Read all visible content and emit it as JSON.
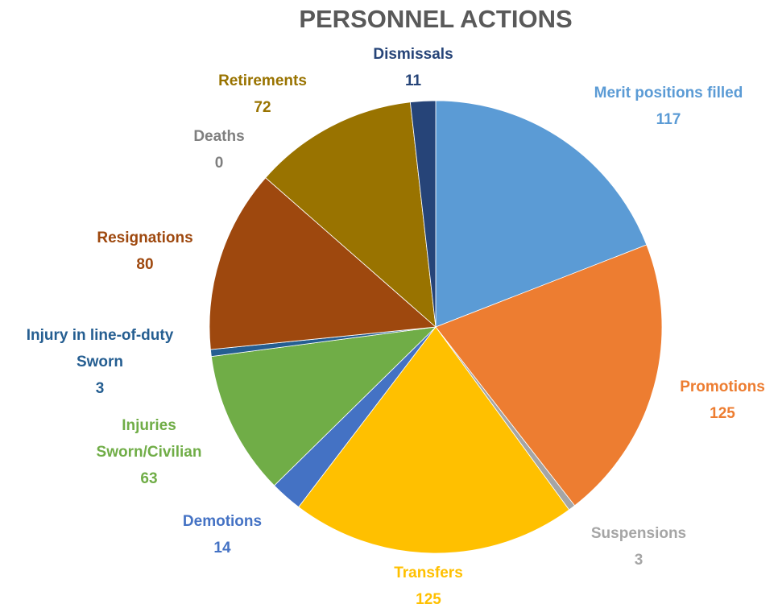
{
  "chart_data": {
    "type": "pie",
    "title": "PERSONNEL ACTIONS",
    "categories": [
      "Merit positions filled",
      "Promotions",
      "Suspensions",
      "Transfers",
      "Demotions",
      "Injuries\nSworn/Civilian",
      "Injury in line-of-duty\nSworn",
      "Resignations",
      "Deaths",
      "Retirements",
      "Dismissals"
    ],
    "values": [
      117,
      125,
      3,
      125,
      14,
      63,
      3,
      80,
      0,
      72,
      11
    ],
    "colors": [
      "#5b9bd5",
      "#ed7d31",
      "#a5a5a5",
      "#ffc000",
      "#4472c4",
      "#70ad47",
      "#255e91",
      "#9e480e",
      "#636363",
      "#997300",
      "#264478"
    ]
  }
}
